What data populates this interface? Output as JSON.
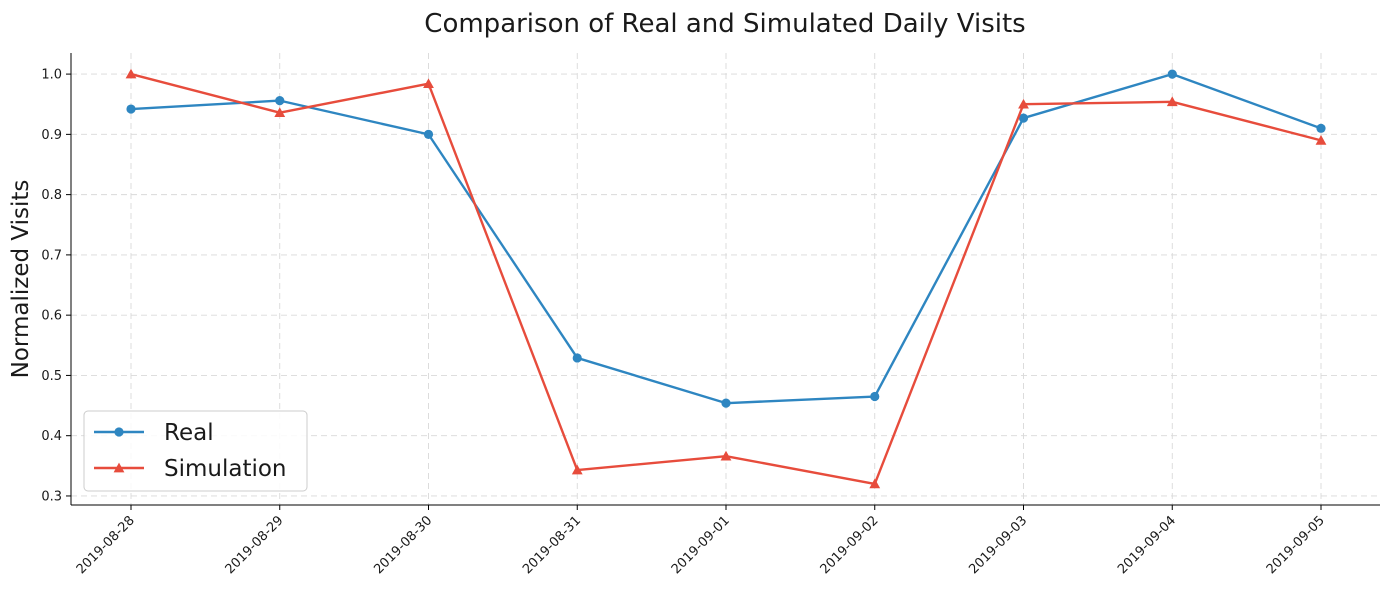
{
  "chart_data": {
    "type": "line",
    "title": "Comparison of Real and Simulated Daily Visits",
    "xlabel": "",
    "ylabel": "Normalized Visits",
    "categories": [
      "2019-08-28",
      "2019-08-29",
      "2019-08-30",
      "2019-08-31",
      "2019-09-01",
      "2019-09-02",
      "2019-09-03",
      "2019-09-04",
      "2019-09-05"
    ],
    "ylim": [
      0.285,
      1.035
    ],
    "yticks": [
      "0.3",
      "0.4",
      "0.5",
      "0.6",
      "0.7",
      "0.8",
      "0.9",
      "1.0"
    ],
    "grid": true,
    "legend_position": "lower-left",
    "series": [
      {
        "name": "Real",
        "color": "#2e86c1",
        "marker": "circle",
        "values": [
          0.942,
          0.956,
          0.9,
          0.529,
          0.454,
          0.465,
          0.927,
          1.0,
          0.91
        ]
      },
      {
        "name": "Simulation",
        "color": "#e74c3c",
        "marker": "triangle",
        "values": [
          1.0,
          0.936,
          0.984,
          0.343,
          0.366,
          0.32,
          0.95,
          0.954,
          0.89
        ]
      }
    ]
  }
}
